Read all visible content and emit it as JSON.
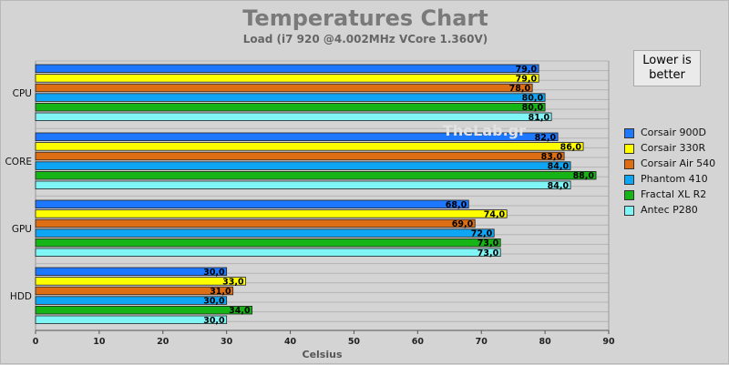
{
  "chart_data": {
    "type": "bar",
    "orientation": "horizontal",
    "title": "Temperatures Chart",
    "subtitle": "Load (i7 920 @4.002MHz VCore 1.360V)",
    "xlabel": "Celsius",
    "ylabel": "",
    "xlim": [
      0,
      90
    ],
    "xticks": [
      0,
      10,
      20,
      30,
      40,
      50,
      60,
      70,
      80,
      90
    ],
    "grid": true,
    "legend_position": "right",
    "annotation": "Lower is better",
    "watermark": "TheLab.gr",
    "categories": [
      "CPU",
      "CORE",
      "GPU",
      "HDD"
    ],
    "series": [
      {
        "name": "Corsair 900D",
        "color": "#1e78ff",
        "values": [
          79.0,
          82.0,
          68.0,
          30.0
        ],
        "labels": [
          "79,0",
          "82,0",
          "68,0",
          "30,0"
        ]
      },
      {
        "name": "Corsair 330R",
        "color": "#ffff00",
        "values": [
          79.0,
          86.0,
          74.0,
          33.0
        ],
        "labels": [
          "79,0",
          "86,0",
          "74,0",
          "33,0"
        ]
      },
      {
        "name": "Corsair Air 540",
        "color": "#dd6e14",
        "values": [
          78.0,
          83.0,
          69.0,
          31.0
        ],
        "labels": [
          "78,0",
          "83,0",
          "69,0",
          "31,0"
        ]
      },
      {
        "name": "Phantom 410",
        "color": "#0ea6f4",
        "values": [
          80.0,
          84.0,
          72.0,
          30.0
        ],
        "labels": [
          "80,0",
          "84,0",
          "72,0",
          "30,0"
        ]
      },
      {
        "name": "Fractal XL R2",
        "color": "#16b416",
        "values": [
          80.0,
          88.0,
          73.0,
          34.0
        ],
        "labels": [
          "80,0",
          "88,0",
          "73,0",
          "34,0"
        ]
      },
      {
        "name": "Antec P280",
        "color": "#7ff5f5",
        "values": [
          81.0,
          84.0,
          73.0,
          30.0
        ],
        "labels": [
          "81,0",
          "84,0",
          "73,0",
          "30,0"
        ]
      }
    ]
  }
}
